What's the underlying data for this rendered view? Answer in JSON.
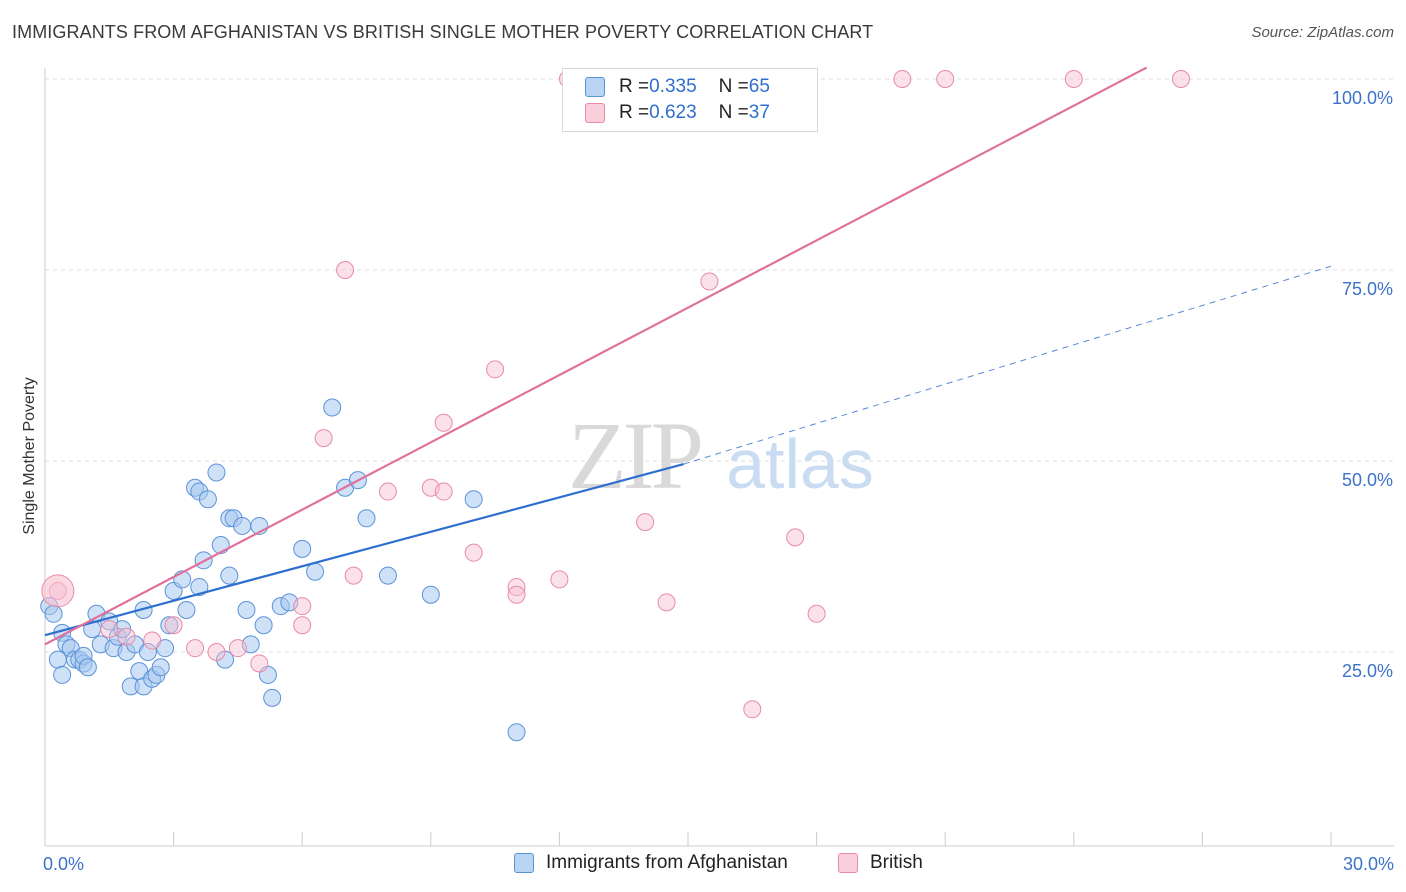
{
  "header": {
    "title": "IMMIGRANTS FROM AFGHANISTAN VS BRITISH SINGLE MOTHER POVERTY CORRELATION CHART",
    "source": "Source: ZipAtlas.com"
  },
  "watermark": {
    "zip": "ZIP",
    "atlas": "atlas"
  },
  "legend": {
    "rows": [
      {
        "r_label": "R = ",
        "r_value": "0.335",
        "n_label": "N = ",
        "n_value": "65"
      },
      {
        "r_label": "R = ",
        "r_value": "0.623",
        "n_label": "N = ",
        "n_value": "37"
      }
    ]
  },
  "colors": {
    "blue_fill": "#a8c8f0",
    "blue_stroke": "#5b93d8",
    "blue_line": "#2e6fcf",
    "pink_fill": "#f6bfd0",
    "pink_stroke": "#e88aa8",
    "pink_line": "#e0719a",
    "tick_label": "#3b73c8",
    "grid": "#dddddd"
  },
  "chart_data": {
    "type": "scatter",
    "title": "IMMIGRANTS FROM AFGHANISTAN VS BRITISH SINGLE MOTHER POVERTY CORRELATION CHART",
    "xlabel": "",
    "ylabel": "Single Mother Poverty",
    "xlim": [
      0,
      30
    ],
    "ylim": [
      5,
      105
    ],
    "x_tick_labels": [
      {
        "x": 0,
        "label": "0.0%"
      },
      {
        "x": 30,
        "label": "30.0%"
      }
    ],
    "y_tick_labels": [
      {
        "y": 25,
        "label": "25.0%"
      },
      {
        "y": 50,
        "label": "50.0%"
      },
      {
        "y": 75,
        "label": "75.0%"
      },
      {
        "y": 100,
        "label": "100.0%"
      }
    ],
    "grid": true,
    "legend_position": "bottom",
    "series": [
      {
        "name": "Immigrants from Afghanistan",
        "color": "#a8c8f0",
        "r": 0.335,
        "n": 65,
        "trend": {
          "x": [
            0,
            14.9
          ],
          "y": [
            27.2,
            49.6
          ],
          "dashed_to": {
            "x": 30,
            "y": 75.5
          }
        },
        "points": [
          [
            0.1,
            31
          ],
          [
            0.2,
            30
          ],
          [
            0.3,
            24
          ],
          [
            0.4,
            27.5
          ],
          [
            0.5,
            26
          ],
          [
            0.6,
            25.5
          ],
          [
            0.7,
            24
          ],
          [
            0.8,
            24
          ],
          [
            0.9,
            23.5
          ],
          [
            0.9,
            24.5
          ],
          [
            1.0,
            23
          ],
          [
            1.1,
            28
          ],
          [
            1.2,
            30
          ],
          [
            1.3,
            26
          ],
          [
            1.5,
            29
          ],
          [
            1.6,
            25.5
          ],
          [
            1.7,
            27
          ],
          [
            1.8,
            28
          ],
          [
            1.9,
            25
          ],
          [
            2.0,
            20.5
          ],
          [
            2.1,
            26
          ],
          [
            2.2,
            22.5
          ],
          [
            2.3,
            20.5
          ],
          [
            2.3,
            30.5
          ],
          [
            2.4,
            25
          ],
          [
            2.5,
            21.5
          ],
          [
            2.6,
            22
          ],
          [
            2.7,
            23
          ],
          [
            2.8,
            25.5
          ],
          [
            2.9,
            28.5
          ],
          [
            3.0,
            33
          ],
          [
            3.2,
            34.5
          ],
          [
            3.3,
            30.5
          ],
          [
            3.5,
            46.5
          ],
          [
            3.6,
            46
          ],
          [
            3.6,
            33.5
          ],
          [
            3.7,
            37
          ],
          [
            3.8,
            45
          ],
          [
            4.0,
            48.5
          ],
          [
            4.1,
            39
          ],
          [
            4.2,
            24
          ],
          [
            4.3,
            42.5
          ],
          [
            4.3,
            35
          ],
          [
            4.4,
            42.5
          ],
          [
            4.6,
            41.5
          ],
          [
            4.7,
            30.5
          ],
          [
            4.8,
            26
          ],
          [
            5.0,
            41.5
          ],
          [
            5.1,
            28.5
          ],
          [
            5.2,
            22
          ],
          [
            5.3,
            19
          ],
          [
            5.5,
            31
          ],
          [
            5.7,
            31.5
          ],
          [
            6.0,
            38.5
          ],
          [
            6.3,
            35.5
          ],
          [
            6.7,
            57
          ],
          [
            7.0,
            46.5
          ],
          [
            7.3,
            47.5
          ],
          [
            7.5,
            42.5
          ],
          [
            8.0,
            35
          ],
          [
            9.0,
            32.5
          ],
          [
            10.0,
            45
          ],
          [
            11.0,
            14.5
          ],
          [
            14.0,
            100
          ],
          [
            0.4,
            22
          ]
        ]
      },
      {
        "name": "British",
        "color": "#f6bfd0",
        "r": 0.623,
        "n": 37,
        "trend": {
          "x": [
            0,
            25.7
          ],
          "y": [
            26.0,
            101.5
          ]
        },
        "points": [
          [
            0.3,
            33
          ],
          [
            1.5,
            28
          ],
          [
            1.9,
            27
          ],
          [
            2.5,
            26.5
          ],
          [
            3.0,
            28.5
          ],
          [
            3.5,
            25.5
          ],
          [
            4.0,
            25
          ],
          [
            4.5,
            25.5
          ],
          [
            5.0,
            23.5
          ],
          [
            6.0,
            31
          ],
          [
            6.0,
            28.5
          ],
          [
            6.5,
            53
          ],
          [
            7.2,
            35
          ],
          [
            8.0,
            46
          ],
          [
            9.0,
            46.5
          ],
          [
            9.3,
            55
          ],
          [
            9.3,
            46
          ],
          [
            10.0,
            38
          ],
          [
            10.5,
            62
          ],
          [
            11.0,
            33.5
          ],
          [
            11.0,
            32.5
          ],
          [
            12.0,
            34.5
          ],
          [
            12.2,
            100
          ],
          [
            12.7,
            100
          ],
          [
            13.0,
            100
          ],
          [
            14.0,
            42
          ],
          [
            14.5,
            31.5
          ],
          [
            15.5,
            73.5
          ],
          [
            16.0,
            100
          ],
          [
            16.5,
            17.5
          ],
          [
            17.5,
            40
          ],
          [
            18.0,
            30
          ],
          [
            20.0,
            100
          ],
          [
            21.0,
            100
          ],
          [
            24.0,
            100
          ],
          [
            26.5,
            100
          ],
          [
            7.0,
            75
          ]
        ]
      }
    ]
  }
}
